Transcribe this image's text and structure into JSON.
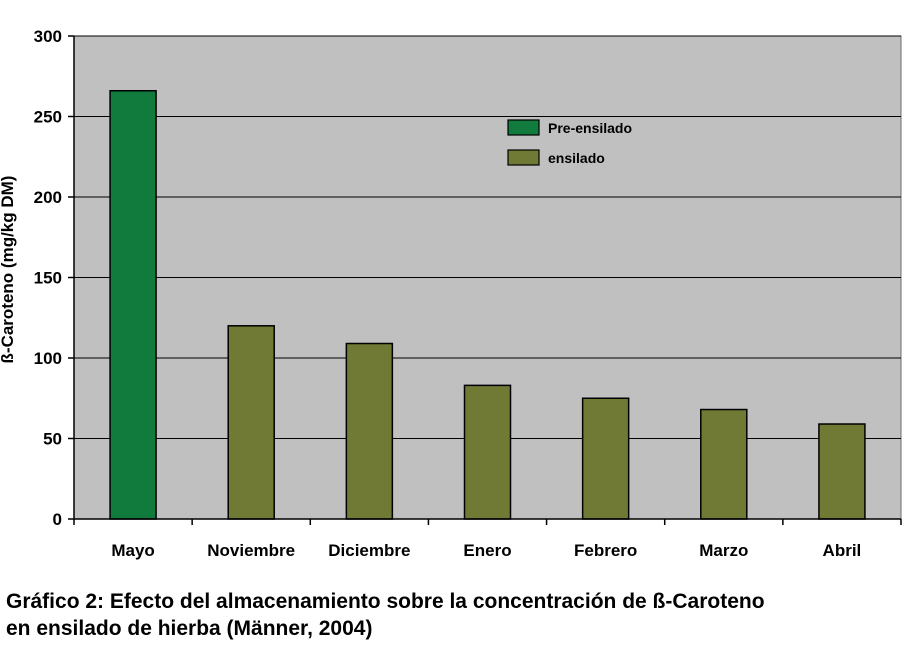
{
  "chart_data": {
    "type": "bar",
    "title": "",
    "xlabel": "",
    "ylabel": "ß-Caroteno (mg/kg DM)",
    "ylim": [
      0,
      300
    ],
    "yticks": [
      0,
      50,
      100,
      150,
      200,
      250,
      300
    ],
    "grid": true,
    "legend_position": "top-right",
    "plot_background": "#c0c0c0",
    "categories": [
      "Mayo",
      "Noviembre",
      "Diciembre",
      "Enero",
      "Febrero",
      "Marzo",
      "Abril"
    ],
    "series": [
      {
        "name": "Pre-ensilado",
        "color": "#117b3e",
        "values": [
          266,
          null,
          null,
          null,
          null,
          null,
          null
        ]
      },
      {
        "name": "ensilado",
        "color": "#707a35",
        "values": [
          null,
          120,
          109,
          83,
          75,
          68,
          59
        ]
      }
    ]
  },
  "caption": {
    "line1": "Gráfico 2: Efecto del almacenamiento sobre la concentración de ß-Caroteno",
    "line2": "en ensilado de hierba (Männer, 2004)"
  }
}
